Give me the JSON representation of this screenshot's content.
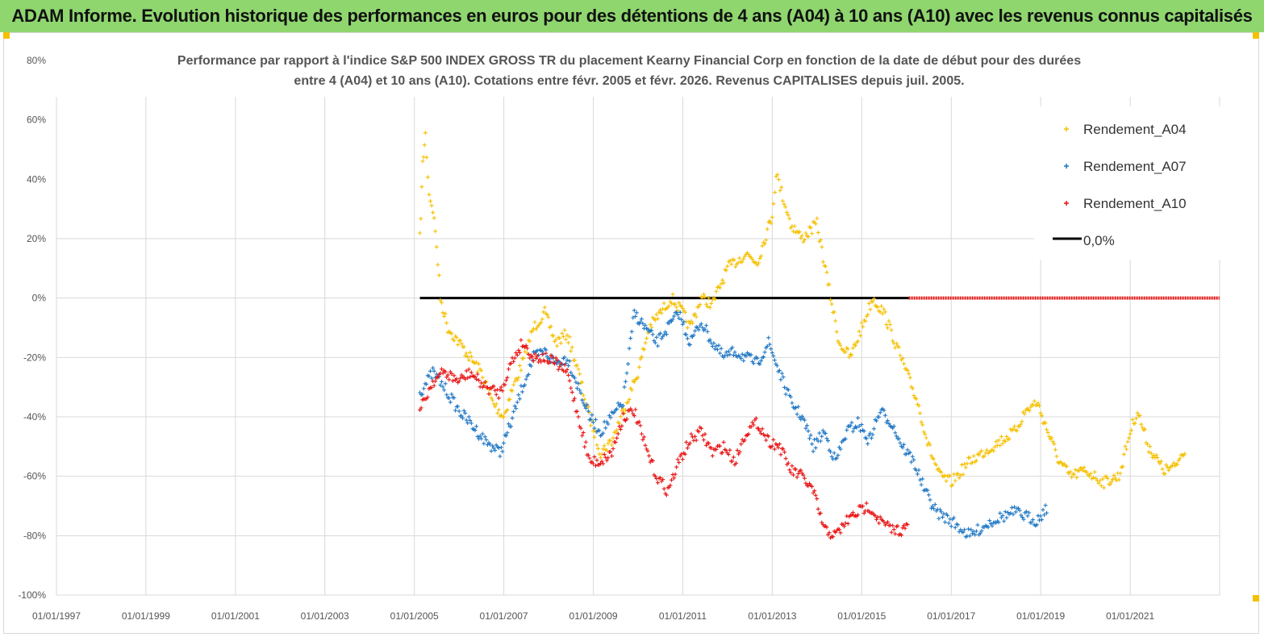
{
  "banner": {
    "title": "ADAM Informe. Evolution historique des performances en euros pour des détentions de 4 ans (A04) à 10 ans (A10) avec les revenus connus capitalisés"
  },
  "colors": {
    "banner_bg": "#8fd66f",
    "A04": "#f5c000",
    "A07": "#1f77c4",
    "A10": "#e81414",
    "zero": "#000000",
    "grid": "#d9d9d9"
  },
  "chart_data": {
    "type": "scatter",
    "title_lines": [
      "Performance par rapport à l'indice S&P 500 INDEX GROSS TR  du placement Kearny Financial Corp en fonction de la date de début pour des durées",
      "entre 4 (A04) et 10 ans (A10). Cotations entre févr. 2005 et févr. 2026. Revenus CAPITALISES depuis juil. 2005."
    ],
    "x_tick_labels": [
      "01/01/1997",
      "01/01/1999",
      "01/01/2001",
      "01/01/2003",
      "01/01/2005",
      "01/01/2007",
      "01/01/2009",
      "01/01/2011",
      "01/01/2013",
      "01/01/2015",
      "01/01/2017",
      "01/01/2019",
      "01/01/2021"
    ],
    "x_range": [
      "1997-01-01",
      "2023-01-01"
    ],
    "y_tick_labels": [
      "80%",
      "60%",
      "40%",
      "20%",
      "0%",
      "-20%",
      "-40%",
      "-60%",
      "-80%",
      "-100%"
    ],
    "y_range": [
      -100,
      80
    ],
    "grid": true,
    "legend_position": "top-right",
    "legend": [
      "Rendement_A04",
      "Rendement_A07",
      "Rendement_A10",
      "0,0%"
    ],
    "series": [
      {
        "name": "Rendement_A04",
        "marker": "+",
        "points": [
          [
            "2005-02-15",
            20
          ],
          [
            "2005-03-10",
            45
          ],
          [
            "2005-04-01",
            55
          ],
          [
            "2005-05-01",
            35
          ],
          [
            "2005-06-01",
            30
          ],
          [
            "2005-07-01",
            18
          ],
          [
            "2005-08-01",
            0
          ],
          [
            "2005-10-01",
            -10
          ],
          [
            "2006-01-01",
            -15
          ],
          [
            "2006-04-01",
            -20
          ],
          [
            "2006-07-01",
            -25
          ],
          [
            "2006-10-01",
            -35
          ],
          [
            "2007-01-01",
            -40
          ],
          [
            "2007-03-01",
            -32
          ],
          [
            "2007-06-01",
            -22
          ],
          [
            "2007-09-01",
            -10
          ],
          [
            "2007-12-01",
            -5
          ],
          [
            "2008-03-01",
            -15
          ],
          [
            "2008-06-01",
            -12
          ],
          [
            "2008-09-01",
            -25
          ],
          [
            "2008-12-01",
            -40
          ],
          [
            "2009-03-01",
            -52
          ],
          [
            "2009-06-01",
            -48
          ],
          [
            "2009-09-01",
            -38
          ],
          [
            "2010-01-01",
            -25
          ],
          [
            "2010-04-01",
            -10
          ],
          [
            "2010-07-01",
            -5
          ],
          [
            "2010-10-01",
            0
          ],
          [
            "2011-01-01",
            -5
          ],
          [
            "2011-03-01",
            -10
          ],
          [
            "2011-06-01",
            0
          ],
          [
            "2011-09-01",
            -2
          ],
          [
            "2012-01-01",
            10
          ],
          [
            "2012-06-01",
            15
          ],
          [
            "2012-09-01",
            12
          ],
          [
            "2013-01-01",
            28
          ],
          [
            "2013-02-01",
            42
          ],
          [
            "2013-06-01",
            25
          ],
          [
            "2013-09-01",
            20
          ],
          [
            "2014-01-01",
            25
          ],
          [
            "2014-04-01",
            5
          ],
          [
            "2014-07-01",
            -15
          ],
          [
            "2014-10-01",
            -20
          ],
          [
            "2015-01-01",
            -10
          ],
          [
            "2015-04-01",
            0
          ],
          [
            "2015-07-01",
            -5
          ],
          [
            "2015-10-01",
            -15
          ],
          [
            "2016-01-01",
            -25
          ],
          [
            "2016-04-01",
            -35
          ],
          [
            "2016-07-01",
            -50
          ],
          [
            "2016-10-01",
            -60
          ],
          [
            "2017-01-01",
            -62
          ],
          [
            "2017-06-01",
            -55
          ],
          [
            "2017-12-01",
            -50
          ],
          [
            "2018-06-01",
            -45
          ],
          [
            "2018-09-01",
            -38
          ],
          [
            "2018-12-01",
            -35
          ],
          [
            "2019-03-01",
            -45
          ],
          [
            "2019-06-01",
            -55
          ],
          [
            "2019-09-01",
            -60
          ],
          [
            "2020-01-01",
            -58
          ],
          [
            "2020-06-01",
            -62
          ],
          [
            "2020-10-01",
            -60
          ],
          [
            "2021-01-01",
            -45
          ],
          [
            "2021-03-01",
            -38
          ],
          [
            "2021-06-01",
            -50
          ],
          [
            "2021-10-01",
            -58
          ],
          [
            "2022-01-01",
            -57
          ],
          [
            "2022-04-01",
            -50
          ]
        ]
      },
      {
        "name": "Rendement_A07",
        "marker": "+",
        "points": [
          [
            "2005-02-15",
            -32
          ],
          [
            "2005-06-01",
            -25
          ],
          [
            "2005-09-01",
            -30
          ],
          [
            "2006-01-01",
            -38
          ],
          [
            "2006-04-01",
            -42
          ],
          [
            "2006-08-01",
            -48
          ],
          [
            "2006-12-01",
            -52
          ],
          [
            "2007-03-01",
            -42
          ],
          [
            "2007-06-01",
            -30
          ],
          [
            "2007-09-01",
            -20
          ],
          [
            "2007-12-01",
            -18
          ],
          [
            "2008-03-01",
            -22
          ],
          [
            "2008-06-01",
            -20
          ],
          [
            "2008-09-01",
            -30
          ],
          [
            "2008-12-01",
            -40
          ],
          [
            "2009-03-01",
            -45
          ],
          [
            "2009-06-01",
            -40
          ],
          [
            "2009-09-01",
            -35
          ],
          [
            "2009-12-01",
            -5
          ],
          [
            "2010-03-01",
            -10
          ],
          [
            "2010-06-01",
            -15
          ],
          [
            "2010-09-01",
            -10
          ],
          [
            "2010-12-01",
            -5
          ],
          [
            "2011-03-01",
            -15
          ],
          [
            "2011-06-01",
            -8
          ],
          [
            "2011-09-01",
            -15
          ],
          [
            "2011-12-01",
            -20
          ],
          [
            "2012-03-01",
            -18
          ],
          [
            "2012-06-01",
            -20
          ],
          [
            "2012-09-01",
            -22
          ],
          [
            "2012-12-01",
            -15
          ],
          [
            "2013-03-01",
            -25
          ],
          [
            "2013-06-01",
            -35
          ],
          [
            "2013-09-01",
            -40
          ],
          [
            "2013-12-01",
            -50
          ],
          [
            "2014-03-01",
            -45
          ],
          [
            "2014-06-01",
            -55
          ],
          [
            "2014-09-01",
            -45
          ],
          [
            "2014-12-01",
            -42
          ],
          [
            "2015-03-01",
            -48
          ],
          [
            "2015-06-01",
            -38
          ],
          [
            "2015-09-01",
            -42
          ],
          [
            "2015-12-01",
            -50
          ],
          [
            "2016-03-01",
            -55
          ],
          [
            "2016-06-01",
            -65
          ],
          [
            "2016-09-01",
            -72
          ],
          [
            "2017-01-01",
            -75
          ],
          [
            "2017-06-01",
            -80
          ],
          [
            "2017-12-01",
            -75
          ],
          [
            "2018-06-01",
            -72
          ],
          [
            "2018-12-01",
            -75
          ],
          [
            "2019-03-01",
            -70
          ]
        ]
      },
      {
        "name": "Rendement_A10",
        "marker": "+",
        "points": [
          [
            "2005-02-15",
            -38
          ],
          [
            "2005-06-01",
            -28
          ],
          [
            "2005-09-01",
            -25
          ],
          [
            "2006-01-01",
            -28
          ],
          [
            "2006-04-01",
            -25
          ],
          [
            "2006-08-01",
            -30
          ],
          [
            "2006-12-01",
            -32
          ],
          [
            "2007-03-01",
            -22
          ],
          [
            "2007-06-01",
            -15
          ],
          [
            "2007-09-01",
            -20
          ],
          [
            "2007-12-01",
            -20
          ],
          [
            "2008-03-01",
            -22
          ],
          [
            "2008-06-01",
            -25
          ],
          [
            "2008-09-01",
            -40
          ],
          [
            "2008-12-01",
            -55
          ],
          [
            "2009-03-01",
            -55
          ],
          [
            "2009-06-01",
            -52
          ],
          [
            "2009-09-01",
            -40
          ],
          [
            "2009-12-01",
            -38
          ],
          [
            "2010-03-01",
            -50
          ],
          [
            "2010-06-01",
            -60
          ],
          [
            "2010-09-01",
            -65
          ],
          [
            "2010-12-01",
            -55
          ],
          [
            "2011-03-01",
            -48
          ],
          [
            "2011-06-01",
            -45
          ],
          [
            "2011-09-01",
            -52
          ],
          [
            "2011-12-01",
            -50
          ],
          [
            "2012-03-01",
            -55
          ],
          [
            "2012-06-01",
            -45
          ],
          [
            "2012-09-01",
            -42
          ],
          [
            "2012-12-01",
            -48
          ],
          [
            "2013-03-01",
            -50
          ],
          [
            "2013-06-01",
            -58
          ],
          [
            "2013-09-01",
            -60
          ],
          [
            "2013-12-01",
            -65
          ],
          [
            "2014-03-01",
            -78
          ],
          [
            "2014-06-01",
            -80
          ],
          [
            "2014-09-01",
            -75
          ],
          [
            "2014-12-01",
            -72
          ],
          [
            "2015-03-01",
            -70
          ],
          [
            "2015-06-01",
            -75
          ],
          [
            "2015-09-01",
            -78
          ],
          [
            "2015-12-01",
            -78
          ],
          [
            "2016-01-20",
            -77
          ]
        ]
      }
    ],
    "zero_line": {
      "label": "0,0%",
      "from": "2005-02-15",
      "to": "2016-01-20",
      "value": 0
    },
    "A10_zero_segment": {
      "from": "2016-01-20",
      "to": "2022-12-31",
      "value": 0
    }
  }
}
